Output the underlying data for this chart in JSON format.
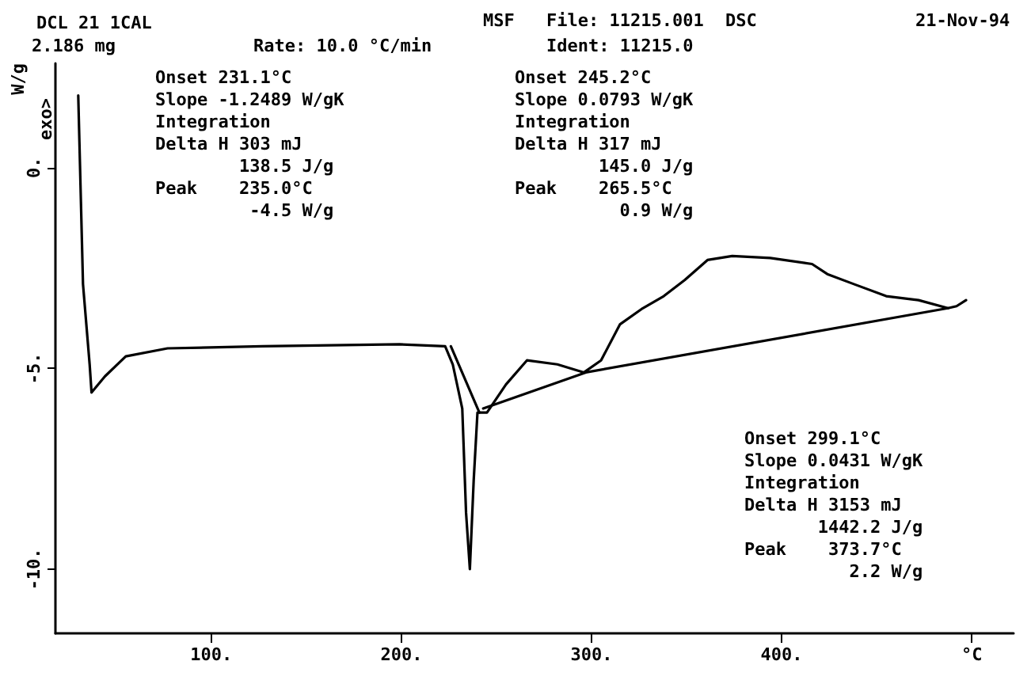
{
  "chart_data": {
    "type": "line",
    "title": "DCL 21 1CAL",
    "ylabel": "W/g",
    "annotations": [
      "2.186 mg",
      "Rate: 10.0 °C/min",
      "MSF",
      "File: 11215.001",
      "Ident: 11215.0",
      "DSC",
      "21-Nov-94",
      "Onset 231.1°C\nSlope -1.2489 W/gK\nIntegration\nDelta H 303 mJ\n        138.5 J/g\nPeak    235.0°C\n         -4.5 W/g",
      "Onset 245.2°C\nSlope 0.0793 W/gK\nIntegration\nDelta H 317 mJ\n        145.0 J/g\nPeak    265.5°C\n          0.9 W/g",
      "Onset 299.1°C\nSlope 0.0431 W/gK\nIntegration\nDelta H 3153 mJ\n       1442.2 J/g\nPeak    373.7°C\n          2.2 W/g",
      "exo>"
    ],
    "xlim": [
      18,
      522
    ],
    "xticks": [
      {
        "value": 100,
        "label": "100."
      },
      {
        "value": 200,
        "label": "200."
      },
      {
        "value": 300,
        "label": "300."
      },
      {
        "value": 400,
        "label": "400."
      },
      {
        "value": 500,
        "label": "°C"
      }
    ],
    "ylim": [
      -11.6,
      2.6
    ],
    "yticks": [
      {
        "value": -10,
        "label": "-10."
      },
      {
        "value": -5,
        "label": "-5."
      },
      {
        "value": 0,
        "label": "0."
      }
    ],
    "grid": false,
    "marker": "none",
    "line_style": "solid",
    "series": [
      {
        "color": "#000000",
        "x": [
          30,
          32.5,
          36,
          37,
          44,
          55,
          77,
          127,
          199,
          223,
          227,
          232,
          234,
          236,
          238,
          240,
          245,
          255,
          266,
          282,
          296,
          305,
          315,
          327,
          338,
          349,
          361,
          374,
          394,
          416,
          424,
          438,
          455,
          472,
          487.5,
          492,
          497
        ],
        "values": [
          1.8,
          -2.9,
          -4.9,
          -5.6,
          -5.2,
          -4.7,
          -4.5,
          -4.45,
          -4.4,
          -4.45,
          -4.9,
          -6.0,
          -8.6,
          -10.0,
          -7.8,
          -6.1,
          -6.1,
          -5.4,
          -4.8,
          -4.9,
          -5.1,
          -4.8,
          -3.9,
          -3.5,
          -3.2,
          -2.8,
          -2.3,
          -2.2,
          -2.25,
          -2.4,
          -2.65,
          -2.9,
          -3.2,
          -3.3,
          -3.5,
          -3.45,
          -3.3
        ]
      },
      {
        "color": "#000000",
        "x": [
          226,
          241
        ],
        "values": [
          -4.45,
          -6.1
        ]
      },
      {
        "color": "#000000",
        "x": [
          243,
          297,
          487.5
        ],
        "values": [
          -6.0,
          -5.1,
          -3.5
        ]
      }
    ]
  }
}
